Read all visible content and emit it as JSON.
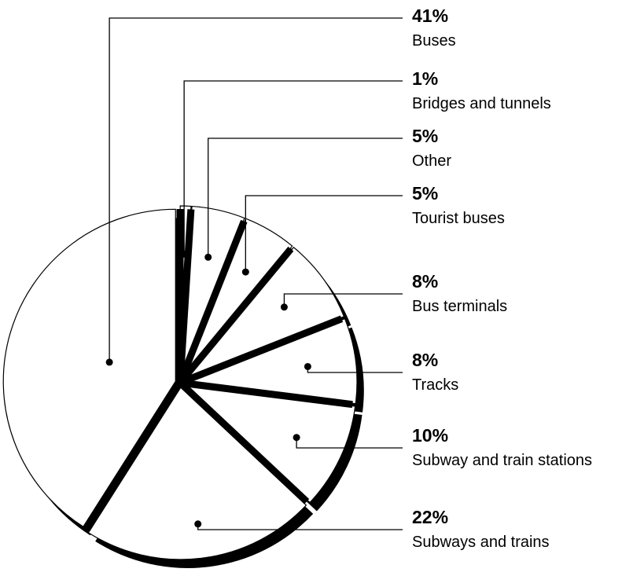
{
  "chart_data": {
    "type": "pie",
    "title": "",
    "slices": [
      {
        "label": "Buses",
        "value": 41,
        "value_label": "41%"
      },
      {
        "label": "Bridges and tunnels",
        "value": 1,
        "value_label": "1%"
      },
      {
        "label": "Other",
        "value": 5,
        "value_label": "5%"
      },
      {
        "label": "Tourist buses",
        "value": 5,
        "value_label": "5%"
      },
      {
        "label": "Bus terminals",
        "value": 8,
        "value_label": "8%"
      },
      {
        "label": "Tracks",
        "value": 8,
        "value_label": "8%"
      },
      {
        "label": "Subway and train stations",
        "value": 10,
        "value_label": "10%"
      },
      {
        "label": "Subways and trains",
        "value": 22,
        "value_label": "22%"
      }
    ],
    "legend": "callout labels on right",
    "colors": {
      "fill": "#ffffff",
      "stroke": "#000000",
      "shadow": "#000000"
    }
  }
}
